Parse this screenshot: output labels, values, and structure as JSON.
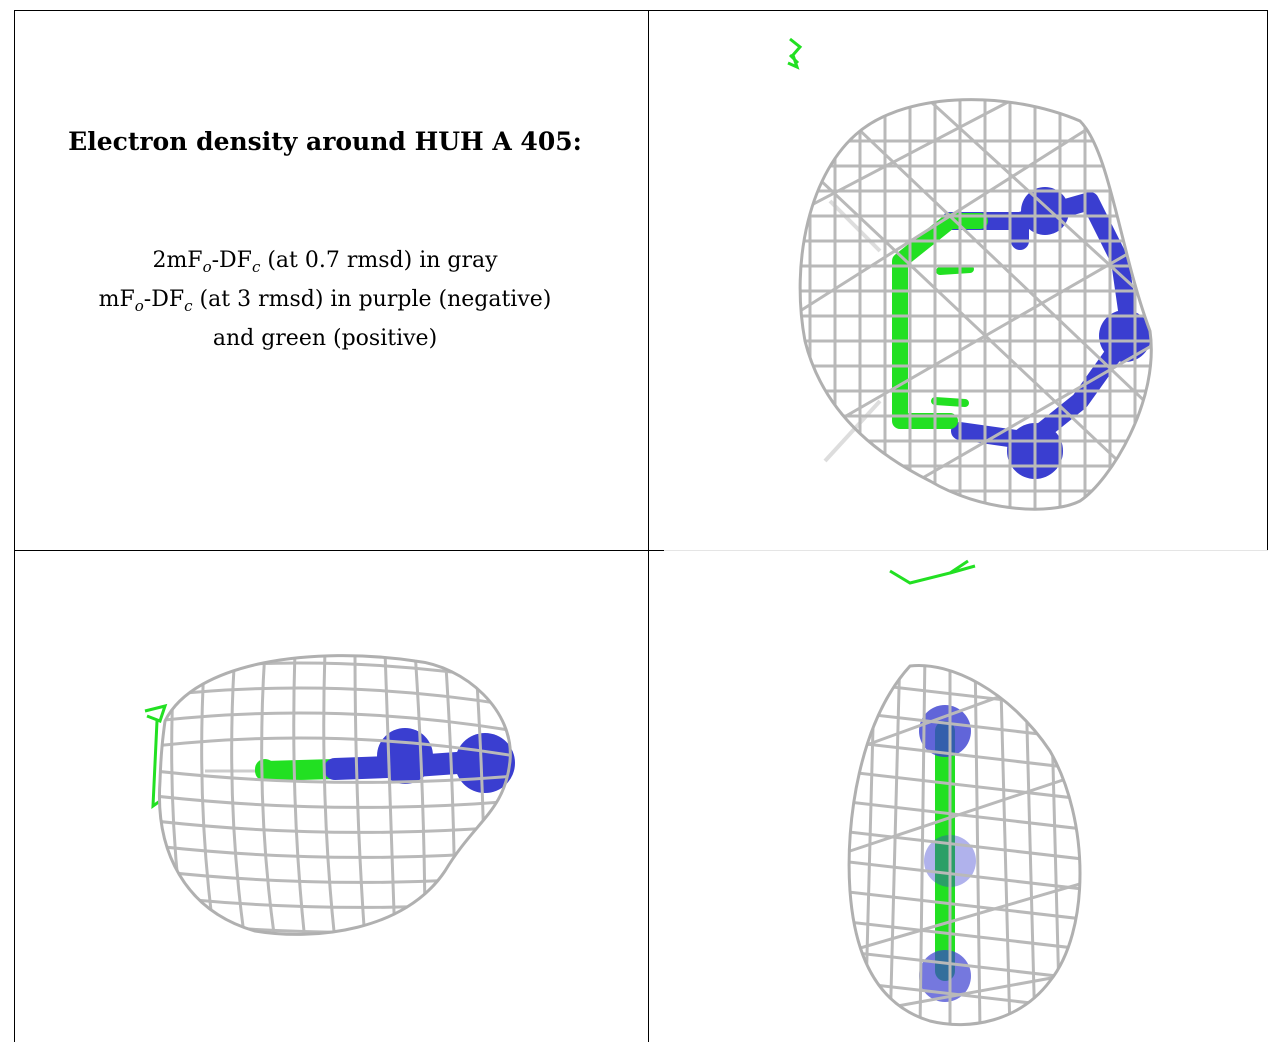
{
  "figure": {
    "title": "Electron density around HUH A 405:",
    "map_2fofc_prefix": "2mF",
    "map_2fofc_sub_o": "o",
    "map_2fofc_mid": "-DF",
    "map_2fofc_sub_c": "c",
    "map_2fofc_suffix": " (at 0.7 rmsd) in gray",
    "map_fofc_prefix": "mF",
    "map_fofc_sub_o": "o",
    "map_fofc_mid": "-DF",
    "map_fofc_sub_c": "c",
    "map_fofc_suffix": " (at 3 rmsd) in purple (negative)",
    "map_fofc_line3": "and green (positive)"
  },
  "colors": {
    "mesh_gray": "#b9b9b9",
    "negative_purple": "#3a3ed0",
    "positive_green": "#22e022",
    "frame": "#000000"
  },
  "panels": [
    {
      "name": "caption-panel"
    },
    {
      "name": "density-view-top-right"
    },
    {
      "name": "density-view-bottom-left"
    },
    {
      "name": "density-view-bottom-right"
    }
  ]
}
